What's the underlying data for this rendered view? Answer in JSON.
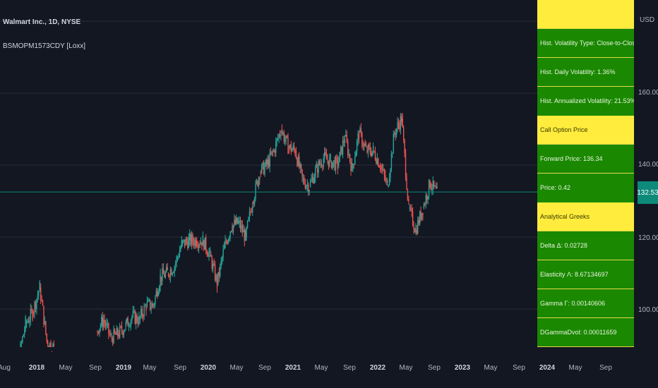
{
  "legend": {
    "title": "Walmart Inc., 1D, NYSE",
    "indicator": "BSMOPM1573CDY [Loxx]"
  },
  "price_axis": {
    "currency": "USD",
    "ticks": [
      "160.00",
      "140.00",
      "120.00",
      "100.00"
    ],
    "current_price": "132.53"
  },
  "time_axis": {
    "labels": [
      "Aug",
      "2018",
      "May",
      "Sep",
      "2019",
      "May",
      "Sep",
      "2020",
      "May",
      "Sep",
      "2021",
      "May",
      "Sep",
      "2022",
      "May",
      "Sep",
      "2023",
      "May",
      "Sep",
      "2024",
      "May",
      "Sep"
    ]
  },
  "table": {
    "rows": [
      {
        "text": "",
        "style": "y"
      },
      {
        "text": "Hist. Volatility Type: Close-to-Close",
        "style": "g"
      },
      {
        "text": "Hist. Daily Volatility: 1.36%",
        "style": "g"
      },
      {
        "text": "Hist. Annualized Volatility: 21.53%",
        "style": "g"
      },
      {
        "text": "Call Option Price",
        "style": "y"
      },
      {
        "text": "Forward Price: 136.34",
        "style": "g"
      },
      {
        "text": "Price: 0.42",
        "style": "g"
      },
      {
        "text": "Analytical Greeks",
        "style": "y"
      },
      {
        "text": "Delta Δ: 0.02728",
        "style": "g"
      },
      {
        "text": "Elasticity Λ: 8.67134697",
        "style": "g"
      },
      {
        "text": "Gamma Γ: 0.00140606",
        "style": "g"
      },
      {
        "text": "DGammaDvol: 0.00011659",
        "style": "g"
      },
      {
        "text": "",
        "style": "g"
      }
    ]
  },
  "colors": {
    "background": "#131722",
    "up_candle": "#26a69a",
    "down_candle": "#ef5350",
    "current_price_line": "#0d8a7a",
    "table_green": "#1a8800",
    "table_yellow": "#ffec3d"
  },
  "chart_data": {
    "type": "candlestick",
    "symbol": "WMT",
    "interval": "1D",
    "ylim": [
      88,
      176
    ],
    "x": [
      "2017-08",
      "2017-09",
      "2017-10",
      "2017-11",
      "2017-12",
      "2018-01",
      "2018-02",
      "2018-03",
      "2018-09",
      "2018-10",
      "2018-11",
      "2018-12",
      "2019-01",
      "2019-02",
      "2019-03",
      "2019-04",
      "2019-05",
      "2019-06",
      "2019-07",
      "2019-08",
      "2019-09",
      "2019-10",
      "2019-11",
      "2019-12",
      "2020-01",
      "2020-02",
      "2020-03",
      "2020-04",
      "2020-05",
      "2020-06",
      "2020-07",
      "2020-08",
      "2020-09",
      "2020-10",
      "2020-11",
      "2020-12",
      "2021-01",
      "2021-02",
      "2021-03",
      "2021-04",
      "2021-05",
      "2021-06",
      "2021-07",
      "2021-08",
      "2021-09",
      "2021-10",
      "2021-11",
      "2021-12",
      "2022-01",
      "2022-02",
      "2022-03",
      "2022-04",
      "2022-05",
      "2022-06",
      "2022-07",
      "2022-08",
      "2022-09"
    ],
    "close": [
      78,
      80,
      86,
      96,
      99,
      106,
      91,
      89,
      94,
      97,
      92,
      93,
      95,
      98,
      97,
      101,
      101,
      109,
      110,
      112,
      118,
      119,
      119,
      119,
      115,
      107,
      117,
      123,
      124,
      120,
      130,
      138,
      140,
      144,
      150,
      145,
      144,
      136,
      134,
      139,
      142,
      141,
      140,
      148,
      139,
      149,
      144,
      144,
      140,
      134,
      149,
      153,
      128,
      122,
      128,
      135,
      132
    ]
  }
}
